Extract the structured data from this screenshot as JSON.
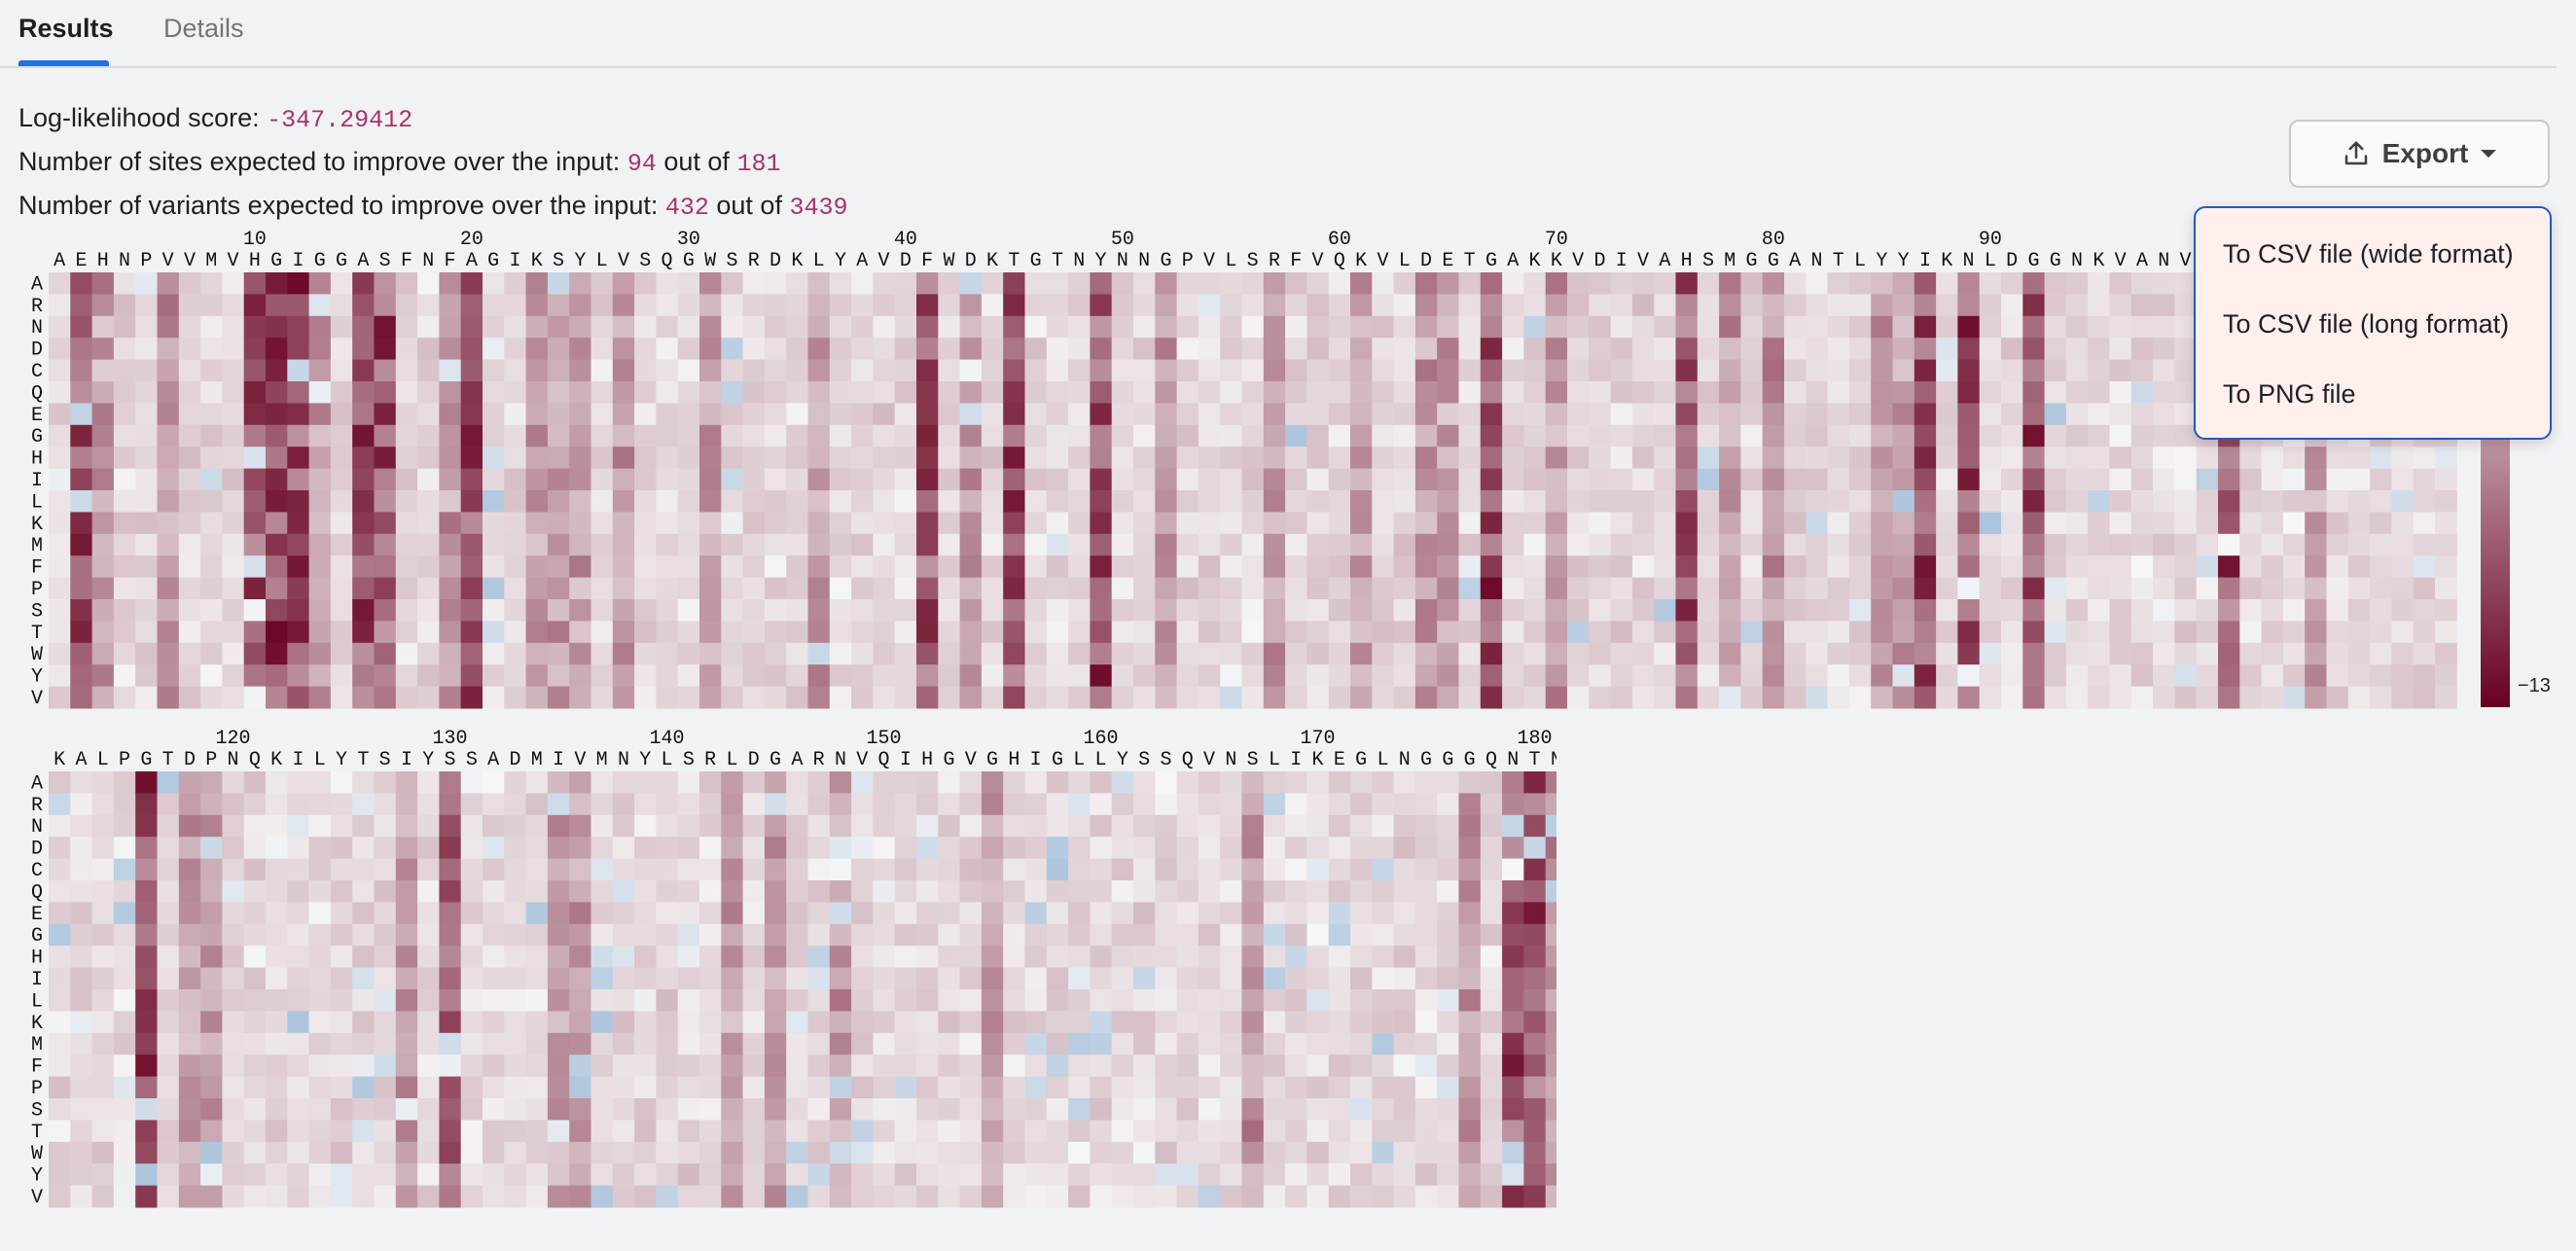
{
  "tabs": [
    {
      "label": "Results",
      "active": true
    },
    {
      "label": "Details",
      "active": false
    }
  ],
  "stats": {
    "ll_label": "Log-likelihood score:",
    "ll_value": "-347.29412",
    "sites_prefix": "Number of sites expected to improve over the input:",
    "sites_value": "94",
    "sites_mid": "out of",
    "sites_total": "181",
    "variants_prefix": "Number of variants expected to improve over the input:",
    "variants_value": "432",
    "variants_mid": "out of",
    "variants_total": "3439"
  },
  "export": {
    "label": "Export",
    "menu": [
      "To CSV file (wide format)",
      "To CSV file (long format)",
      "To PNG file"
    ]
  },
  "colors": {
    "accent": "#1a73e8",
    "value_text": "#a8326e",
    "heat_min": "#67001f",
    "heat_mid": "#f7f7f7",
    "heat_max": "#2166ac"
  },
  "heatmap": {
    "sequence": "AEHNPVVMVHGIGGASFNFAGIKSYLVSQGWSRDKLYAVDFWDKTGTNYNNGPVLSRFVQKVLDETGAKKVDIVAHSMGGANTLYYIKNLDGGNKVANVVTLGGANRLTTGKALPGTDPNQKILYTSIYSSADMIVMNYLSRLDGARNVQIHGVGHIGLLYSSQVNSLIKEGLNGGGQNTN",
    "amino_acids": [
      "A",
      "R",
      "N",
      "D",
      "C",
      "Q",
      "E",
      "G",
      "H",
      "I",
      "L",
      "K",
      "M",
      "F",
      "P",
      "S",
      "T",
      "W",
      "Y",
      "V"
    ],
    "position_ticks": [
      10,
      20,
      30,
      40,
      50,
      60,
      70,
      80,
      90,
      120,
      130,
      140,
      150,
      160,
      170,
      180
    ],
    "colorbar_label": "−13"
  }
}
